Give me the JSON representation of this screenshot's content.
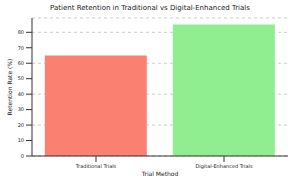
{
  "chart_data": {
    "type": "bar",
    "title": "Patient Retention in Traditional vs Digital-Enhanced Trials",
    "x_label": "Trial Method",
    "y_label": "Retention Rate (%)",
    "categories": [
      "Traditional Trials",
      "Digital-Enhanced Trials"
    ],
    "values": [
      65,
      85
    ],
    "colors": [
      "#fa8072",
      "#90ee90"
    ],
    "ylim": [
      0,
      89.25
    ],
    "yticks": [
      0,
      10,
      20,
      30,
      40,
      50,
      60,
      70,
      80
    ],
    "grid": true
  }
}
